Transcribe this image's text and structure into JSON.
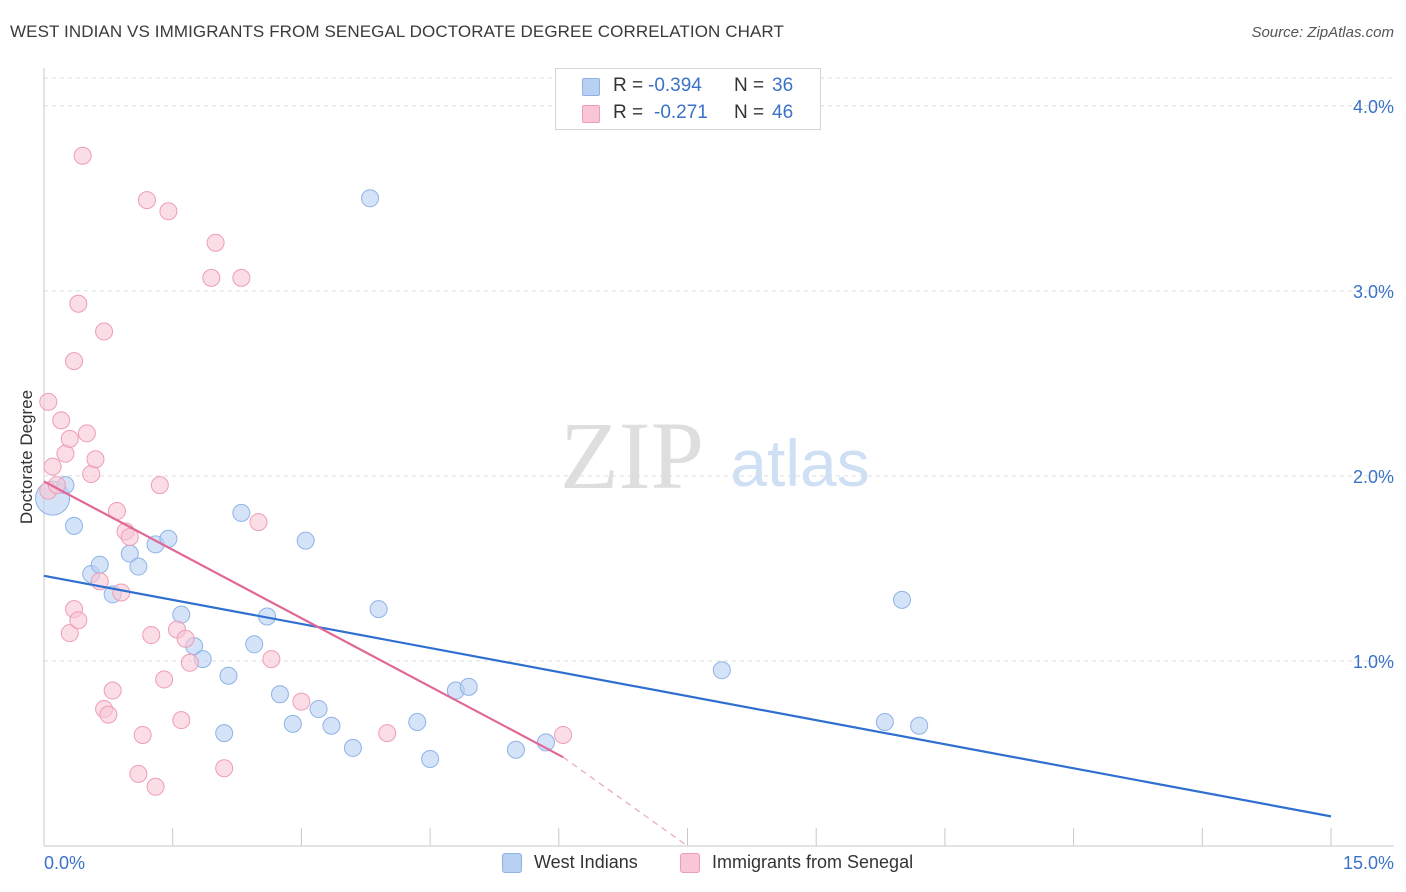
{
  "header": {
    "title": "WEST INDIAN VS IMMIGRANTS FROM SENEGAL DOCTORATE DEGREE CORRELATION CHART",
    "source": "Source: ZipAtlas.com"
  },
  "watermark": {
    "zip": "ZIP",
    "atlas": "atlas"
  },
  "legend": {
    "r_label": "R = ",
    "n_label": "N = ",
    "series": [
      {
        "name": "West Indians",
        "r": "-0.394",
        "n": "36"
      },
      {
        "name": "Immigrants from Senegal",
        "r": "-0.271",
        "n": "46"
      }
    ]
  },
  "colors": {
    "blue_fill": "#b8d1f3",
    "blue_stroke": "#8fb3e6",
    "blue_line": "#2f6fd0",
    "pink_fill": "#f8c6d6",
    "pink_stroke": "#ee9db8",
    "pink_line": "#e06796",
    "axis_text": "#3b72c8",
    "grid": "#dcdcdc"
  },
  "chart_data": {
    "type": "scatter",
    "title": "WEST INDIAN VS IMMIGRANTS FROM SENEGAL DOCTORATE DEGREE CORRELATION CHART",
    "xlabel": "",
    "ylabel": "Doctorate Degree",
    "xlim": [
      0,
      15
    ],
    "ylim": [
      0,
      4.15
    ],
    "x_tick_labels": [
      "0.0%",
      "15.0%"
    ],
    "y_ticks": [
      1,
      2,
      3,
      4
    ],
    "y_tick_labels": [
      "1.0%",
      "2.0%",
      "3.0%",
      "4.0%"
    ],
    "grid": true,
    "legend_position": "top-center",
    "series": [
      {
        "name": "West Indians",
        "r": -0.394,
        "n": 36,
        "points": [
          [
            0.1,
            1.88
          ],
          [
            0.25,
            1.95
          ],
          [
            0.35,
            1.73
          ],
          [
            0.55,
            1.47
          ],
          [
            0.65,
            1.52
          ],
          [
            0.8,
            1.36
          ],
          [
            1.0,
            1.58
          ],
          [
            1.1,
            1.51
          ],
          [
            1.3,
            1.63
          ],
          [
            1.45,
            1.66
          ],
          [
            1.6,
            1.25
          ],
          [
            1.75,
            1.08
          ],
          [
            1.85,
            1.01
          ],
          [
            2.1,
            0.61
          ],
          [
            2.15,
            0.92
          ],
          [
            2.3,
            1.8
          ],
          [
            2.45,
            1.09
          ],
          [
            2.6,
            1.24
          ],
          [
            2.75,
            0.82
          ],
          [
            2.9,
            0.66
          ],
          [
            3.05,
            1.65
          ],
          [
            3.2,
            0.74
          ],
          [
            3.35,
            0.65
          ],
          [
            3.6,
            0.53
          ],
          [
            3.8,
            3.5
          ],
          [
            3.9,
            1.28
          ],
          [
            4.35,
            0.67
          ],
          [
            4.5,
            0.47
          ],
          [
            4.8,
            0.84
          ],
          [
            4.95,
            0.86
          ],
          [
            5.5,
            0.52
          ],
          [
            5.85,
            0.56
          ],
          [
            7.9,
            0.95
          ],
          [
            9.8,
            0.67
          ],
          [
            10.0,
            1.33
          ],
          [
            10.2,
            0.65
          ]
        ],
        "trend": {
          "x": [
            0.0,
            15.0
          ],
          "y": [
            1.46,
            0.16
          ]
        }
      },
      {
        "name": "Immigrants from Senegal",
        "r": -0.271,
        "n": 46,
        "points": [
          [
            0.05,
            2.4
          ],
          [
            0.05,
            1.92
          ],
          [
            0.1,
            2.05
          ],
          [
            0.15,
            1.95
          ],
          [
            0.2,
            2.3
          ],
          [
            0.25,
            2.12
          ],
          [
            0.3,
            2.2
          ],
          [
            0.35,
            2.62
          ],
          [
            0.4,
            2.93
          ],
          [
            0.45,
            3.73
          ],
          [
            0.5,
            2.23
          ],
          [
            0.55,
            2.01
          ],
          [
            0.6,
            2.09
          ],
          [
            0.65,
            1.43
          ],
          [
            0.7,
            2.78
          ],
          [
            0.3,
            1.15
          ],
          [
            0.35,
            1.28
          ],
          [
            0.4,
            1.22
          ],
          [
            0.7,
            0.74
          ],
          [
            0.75,
            0.71
          ],
          [
            0.8,
            0.84
          ],
          [
            0.85,
            1.81
          ],
          [
            0.9,
            1.37
          ],
          [
            0.95,
            1.7
          ],
          [
            1.0,
            1.67
          ],
          [
            1.1,
            0.39
          ],
          [
            1.15,
            0.6
          ],
          [
            1.2,
            3.49
          ],
          [
            1.25,
            1.14
          ],
          [
            1.3,
            0.32
          ],
          [
            1.35,
            1.95
          ],
          [
            1.4,
            0.9
          ],
          [
            1.45,
            3.43
          ],
          [
            1.55,
            1.17
          ],
          [
            1.6,
            0.68
          ],
          [
            1.65,
            1.12
          ],
          [
            1.7,
            0.99
          ],
          [
            1.95,
            3.07
          ],
          [
            2.0,
            3.26
          ],
          [
            2.1,
            0.42
          ],
          [
            2.3,
            3.07
          ],
          [
            2.5,
            1.75
          ],
          [
            2.65,
            1.01
          ],
          [
            3.0,
            0.78
          ],
          [
            4.0,
            0.61
          ],
          [
            6.05,
            0.6
          ]
        ],
        "trend": {
          "x": [
            0.0,
            6.05
          ],
          "y": [
            1.97,
            0.48
          ]
        },
        "trend_ext": {
          "x": [
            6.05,
            7.5
          ],
          "y": [
            0.48,
            0.0
          ]
        }
      }
    ]
  }
}
